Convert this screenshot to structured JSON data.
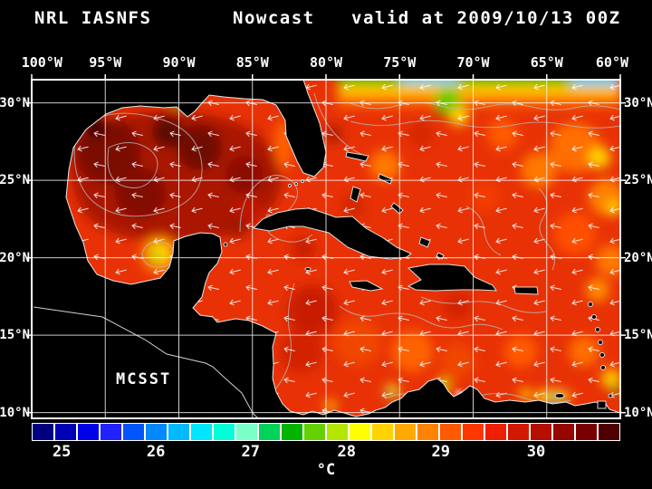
{
  "title": {
    "left": "NRL IASNFS",
    "center": "Nowcast",
    "right": "valid at 2009/10/13 00Z"
  },
  "map": {
    "annotation": "MCSST"
  },
  "axes": {
    "top": [
      {
        "label": "100°W",
        "pct": 0
      },
      {
        "label": "95°W",
        "pct": 12.5
      },
      {
        "label": "90°W",
        "pct": 25
      },
      {
        "label": "85°W",
        "pct": 37.5
      },
      {
        "label": "80°W",
        "pct": 50
      },
      {
        "label": "75°W",
        "pct": 62.5
      },
      {
        "label": "70°W",
        "pct": 75
      },
      {
        "label": "65°W",
        "pct": 87.5
      },
      {
        "label": "60°W",
        "pct": 100
      }
    ],
    "lat": [
      {
        "label": "30°N",
        "pct": 6.9
      },
      {
        "label": "25°N",
        "pct": 29.7
      },
      {
        "label": "20°N",
        "pct": 52.6
      },
      {
        "label": "15°N",
        "pct": 75.4
      },
      {
        "label": "10°N",
        "pct": 98.3
      }
    ]
  },
  "colorbar": {
    "unit": "°C",
    "ticks": [
      {
        "value": "25",
        "pct": 5.1
      },
      {
        "value": "26",
        "pct": 21.1
      },
      {
        "value": "27",
        "pct": 37.2
      },
      {
        "value": "28",
        "pct": 53.5
      },
      {
        "value": "29",
        "pct": 69.5
      },
      {
        "value": "30",
        "pct": 85.7
      }
    ],
    "colors": [
      "#000080",
      "#0000b4",
      "#0000e6",
      "#2222ff",
      "#0055ff",
      "#0088ff",
      "#00baff",
      "#00e6ff",
      "#00ffd8",
      "#7dffc8",
      "#00d25a",
      "#00b400",
      "#64d200",
      "#b4e600",
      "#ffff00",
      "#ffd200",
      "#ffaa00",
      "#ff8200",
      "#ff5a00",
      "#ff3700",
      "#f01e00",
      "#d21900",
      "#b40f00",
      "#960500",
      "#780000",
      "#500000"
    ]
  }
}
